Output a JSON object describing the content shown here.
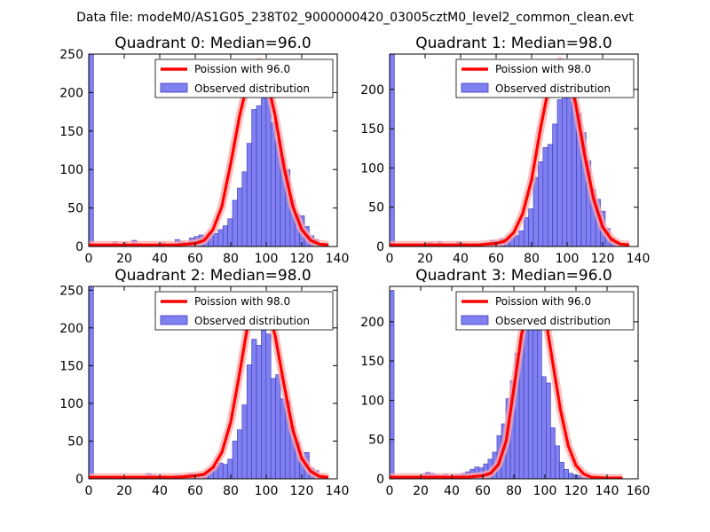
{
  "figure": {
    "suptitle": "Data file: modeM0/AS1G05_238T02_9000000420_03005cztM0_level2_common_clean.evt"
  },
  "colors": {
    "hist_fill": "#8080f0",
    "hist_edge": "#3b3bbd",
    "poisson_line": "#ff0000",
    "poisson_band": "#ffaaaa",
    "axis": "#000000"
  },
  "chart_data": [
    {
      "type": "bar",
      "title": "Quadrant 0: Median=96.0",
      "xlim": [
        0,
        140
      ],
      "ylim": [
        0,
        250
      ],
      "xticks": [
        0,
        20,
        40,
        60,
        80,
        100,
        120,
        140
      ],
      "yticks": [
        0,
        50,
        100,
        150,
        200,
        250
      ],
      "legend_loc": "upper right",
      "legend": [
        "Poission with 96.0",
        "Observed distribution"
      ],
      "bin_edges": [
        0,
        2.7,
        5.4,
        8.1,
        10.8,
        13.5,
        16.2,
        18.9,
        21.6,
        24.3,
        27,
        29.7,
        32.4,
        35.1,
        37.8,
        40.5,
        43.2,
        45.9,
        48.6,
        51.3,
        54,
        56.7,
        59.4,
        62.1,
        64.8,
        67.5,
        70.2,
        72.9,
        75.6,
        78.3,
        81,
        83.7,
        86.4,
        89.1,
        91.8,
        94.5,
        97.2,
        99.9,
        102.6,
        105.3,
        108,
        110.7,
        113.4,
        116.1,
        118.8,
        121.5,
        124.2,
        126.9,
        129.6,
        132.3,
        135
      ],
      "counts": [
        250,
        0,
        0,
        0,
        0,
        6,
        3,
        5,
        2,
        8,
        4,
        2,
        2,
        3,
        3,
        5,
        2,
        3,
        9,
        7,
        5,
        11,
        13,
        15,
        11,
        17,
        17,
        22,
        27,
        36,
        60,
        76,
        97,
        134,
        178,
        183,
        205,
        220,
        161,
        139,
        114,
        100,
        60,
        42,
        40,
        26,
        14,
        9,
        3,
        3
      ],
      "series": [
        {
          "name": "Poission with 96.0",
          "x": [
            0,
            50,
            55,
            60,
            65,
            70,
            75,
            80,
            85,
            90,
            93,
            96,
            100,
            105,
            110,
            115,
            120,
            125,
            130,
            135
          ],
          "values": [
            2,
            2,
            3,
            4,
            8,
            22,
            52,
            108,
            170,
            218,
            236,
            240,
            222,
            170,
            103,
            52,
            22,
            8,
            3,
            2
          ]
        }
      ]
    },
    {
      "type": "bar",
      "title": "Quadrant 1: Median=98.0",
      "xlim": [
        0,
        140
      ],
      "ylim": [
        0,
        245
      ],
      "xticks": [
        0,
        20,
        40,
        60,
        80,
        100,
        120,
        140
      ],
      "yticks": [
        0,
        50,
        100,
        150,
        200
      ],
      "legend_loc": "upper right",
      "legend": [
        "Poission with 98.0",
        "Observed distribution"
      ],
      "bin_edges": [
        0,
        2.7,
        5.4,
        8.1,
        10.8,
        13.5,
        16.2,
        18.9,
        21.6,
        24.3,
        27,
        29.7,
        32.4,
        35.1,
        37.8,
        40.5,
        43.2,
        45.9,
        48.6,
        51.3,
        54,
        56.7,
        59.4,
        62.1,
        64.8,
        67.5,
        70.2,
        72.9,
        75.6,
        78.3,
        81,
        83.7,
        86.4,
        89.1,
        91.8,
        94.5,
        97.2,
        99.9,
        102.6,
        105.3,
        108,
        110.7,
        113.4,
        116.1,
        118.8,
        121.5,
        124.2,
        126.9,
        129.6,
        132.3,
        135
      ],
      "counts": [
        245,
        0,
        0,
        0,
        0,
        0,
        2,
        0,
        5,
        3,
        6,
        3,
        2,
        2,
        6,
        4,
        2,
        3,
        2,
        4,
        5,
        8,
        7,
        10,
        10,
        12,
        14,
        20,
        37,
        48,
        88,
        108,
        126,
        130,
        156,
        187,
        221,
        201,
        195,
        170,
        145,
        109,
        73,
        60,
        45,
        23,
        11,
        5,
        3,
        0
      ],
      "series": [
        {
          "name": "Poission with 98.0",
          "x": [
            0,
            50,
            55,
            60,
            65,
            70,
            75,
            80,
            85,
            90,
            93,
            96,
            100,
            105,
            110,
            115,
            120,
            125,
            130,
            135
          ],
          "values": [
            2,
            2,
            3,
            4,
            7,
            18,
            42,
            85,
            150,
            207,
            228,
            236,
            228,
            180,
            115,
            60,
            25,
            9,
            3,
            2
          ]
        }
      ]
    },
    {
      "type": "bar",
      "title": "Quadrant 2: Median=98.0",
      "xlim": [
        0,
        140
      ],
      "ylim": [
        0,
        255
      ],
      "xticks": [
        0,
        20,
        40,
        60,
        80,
        100,
        120,
        140
      ],
      "yticks": [
        0,
        50,
        100,
        150,
        200,
        250
      ],
      "legend_loc": "upper right",
      "legend": [
        "Poission with 98.0",
        "Observed distribution"
      ],
      "bin_edges": [
        0,
        2.7,
        5.4,
        8.1,
        10.8,
        13.5,
        16.2,
        18.9,
        21.6,
        24.3,
        27,
        29.7,
        32.4,
        35.1,
        37.8,
        40.5,
        43.2,
        45.9,
        48.6,
        51.3,
        54,
        56.7,
        59.4,
        62.1,
        64.8,
        67.5,
        70.2,
        72.9,
        75.6,
        78.3,
        81,
        83.7,
        86.4,
        89.1,
        91.8,
        94.5,
        97.2,
        99.9,
        102.6,
        105.3,
        108,
        110.7,
        113.4,
        116.1,
        118.8,
        121.5,
        124.2,
        126.9,
        129.6,
        132.3,
        135
      ],
      "counts": [
        255,
        0,
        0,
        0,
        0,
        2,
        0,
        2,
        0,
        2,
        1,
        3,
        7,
        5,
        3,
        4,
        2,
        2,
        5,
        4,
        5,
        7,
        3,
        7,
        6,
        10,
        16,
        21,
        19,
        26,
        50,
        65,
        98,
        151,
        185,
        177,
        220,
        192,
        133,
        138,
        106,
        103,
        70,
        49,
        28,
        35,
        14,
        11,
        5,
        0
      ],
      "series": [
        {
          "name": "Poission with 98.0",
          "x": [
            0,
            50,
            55,
            60,
            65,
            70,
            75,
            80,
            85,
            90,
            93,
            96,
            100,
            105,
            110,
            115,
            120,
            125,
            130,
            135
          ],
          "values": [
            2,
            2,
            3,
            4,
            6,
            15,
            35,
            75,
            140,
            210,
            232,
            240,
            232,
            190,
            125,
            65,
            27,
            10,
            3,
            2
          ]
        }
      ]
    },
    {
      "type": "bar",
      "title": "Quadrant 3: Median=96.0",
      "xlim": [
        0,
        160
      ],
      "ylim": [
        0,
        245
      ],
      "xticks": [
        0,
        20,
        40,
        60,
        80,
        100,
        120,
        140,
        160
      ],
      "yticks": [
        0,
        50,
        100,
        150,
        200
      ],
      "legend_loc": "upper right",
      "legend": [
        "Poission with 96.0",
        "Observed distribution"
      ],
      "bin_edges": [
        0,
        2.88,
        5.76,
        8.64,
        11.52,
        14.4,
        17.28,
        20.16,
        23.04,
        25.92,
        28.8,
        31.68,
        34.56,
        37.44,
        40.32,
        43.2,
        46.08,
        48.96,
        51.84,
        54.72,
        57.6,
        60.48,
        63.36,
        66.24,
        69.12,
        72,
        74.88,
        77.76,
        80.64,
        83.52,
        86.4,
        89.28,
        92.16,
        95.04,
        97.92,
        100.8,
        103.68,
        106.56,
        109.44,
        112.32,
        115.2,
        118.08,
        120.96,
        123.84,
        126.72,
        129.6,
        132.48,
        135.36,
        138.24,
        141.12,
        144
      ],
      "counts": [
        240,
        0,
        0,
        0,
        0,
        0,
        0,
        6,
        8,
        7,
        5,
        4,
        6,
        3,
        5,
        5,
        7,
        9,
        12,
        15,
        14,
        19,
        25,
        34,
        55,
        70,
        102,
        125,
        160,
        178,
        195,
        210,
        220,
        200,
        130,
        122,
        65,
        42,
        21,
        12,
        7,
        5,
        4,
        2,
        3,
        2,
        1,
        1,
        0,
        0
      ],
      "series": [
        {
          "name": "Poission with 96.0",
          "x": [
            0,
            50,
            55,
            60,
            65,
            70,
            75,
            80,
            85,
            90,
            93,
            96,
            100,
            105,
            110,
            115,
            120,
            125,
            130,
            140,
            150
          ],
          "values": [
            2,
            2,
            3,
            4,
            7,
            18,
            48,
            115,
            185,
            222,
            232,
            230,
            210,
            148,
            88,
            42,
            17,
            6,
            2,
            1,
            1
          ]
        }
      ]
    }
  ]
}
